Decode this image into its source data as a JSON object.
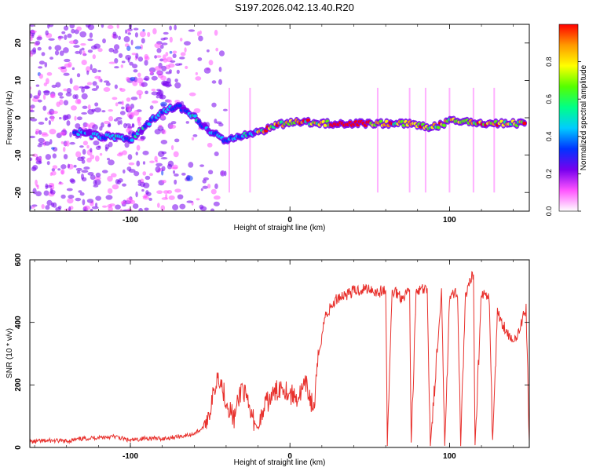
{
  "title": "S197.2026.042.13.40.R20",
  "colors": {
    "trace": "#e8302c",
    "axis": "#000000"
  },
  "chart_data": [
    {
      "type": "heatmap",
      "xlabel": "Height of straight line (km)",
      "ylabel": "Frequency (Hz)",
      "xlim": [
        -163,
        150
      ],
      "ylim": [
        -25,
        25
      ],
      "xticks": [
        -100,
        0,
        100
      ],
      "yticks": [
        -20,
        -10,
        0,
        10,
        20
      ],
      "ytick_labels": [
        "-20",
        "-10",
        "0",
        "10",
        "20"
      ],
      "xtick_labels": [
        "-100",
        "0",
        "100"
      ],
      "colorbar": {
        "label": "Normalized spectral amplitude",
        "range": [
          0,
          1
        ],
        "ticks": [
          0.0,
          0.2,
          0.4,
          0.6,
          0.8
        ],
        "tick_labels": [
          "0.0",
          "0.2",
          "0.4",
          "0.6",
          "0.8"
        ],
        "colormap": [
          "#ffffff",
          "#ff55ff",
          "#7700ee",
          "#0033ff",
          "#00ccff",
          "#00ff88",
          "#55ff00",
          "#ffff00",
          "#ff9900",
          "#ff0000"
        ]
      },
      "ridge": {
        "x": [
          -130,
          -120,
          -110,
          -100,
          -90,
          -80,
          -70,
          -62,
          -55,
          -48,
          -40,
          -30,
          -20,
          -10,
          0,
          10,
          20,
          30,
          40,
          50,
          60,
          70,
          80,
          90,
          100,
          110,
          120,
          130,
          140,
          148
        ],
        "y": [
          -4,
          -5,
          -5,
          -6,
          -2,
          2,
          3,
          1,
          -2,
          -4,
          -6,
          -5,
          -4,
          -2,
          -1.5,
          -1,
          -1.5,
          -1.5,
          -1.5,
          -1.5,
          -1.5,
          -1.5,
          -2,
          -2.5,
          -1,
          -1,
          -1.5,
          -1.5,
          -1.5,
          -1.5
        ]
      }
    },
    {
      "type": "line",
      "xlabel": "Height of straight line (km)",
      "ylabel": "SNR (10 * v/v)",
      "xlim": [
        -163,
        150
      ],
      "ylim": [
        0,
        600
      ],
      "xticks": [
        -100,
        0,
        100
      ],
      "yticks": [
        0,
        200,
        400,
        600
      ],
      "xtick_labels": [
        "-100",
        "0",
        "100"
      ],
      "ytick_labels": [
        "0",
        "200",
        "400",
        "600"
      ],
      "series": [
        {
          "name": "SNR",
          "x": [
            -163,
            -150,
            -140,
            -130,
            -120,
            -110,
            -100,
            -90,
            -80,
            -70,
            -62,
            -55,
            -50,
            -45,
            -40,
            -35,
            -30,
            -25,
            -20,
            -15,
            -10,
            -5,
            0,
            5,
            10,
            15,
            18,
            22,
            30,
            40,
            50,
            55,
            60,
            61,
            64,
            66,
            70,
            75,
            76,
            79,
            82,
            86,
            88,
            95,
            97,
            100,
            105,
            107,
            110,
            115,
            116,
            120,
            125,
            127,
            130,
            135,
            140,
            145,
            148,
            150
          ],
          "y": [
            18,
            22,
            20,
            28,
            32,
            35,
            22,
            30,
            28,
            35,
            40,
            60,
            120,
            240,
            150,
            90,
            200,
            110,
            60,
            140,
            170,
            200,
            170,
            160,
            200,
            120,
            300,
            420,
            480,
            500,
            510,
            495,
            505,
            10,
            495,
            500,
            480,
            505,
            10,
            490,
            505,
            500,
            10,
            490,
            10,
            480,
            500,
            10,
            480,
            560,
            10,
            500,
            470,
            20,
            430,
            380,
            330,
            400,
            440,
            20
          ]
        }
      ]
    }
  ]
}
